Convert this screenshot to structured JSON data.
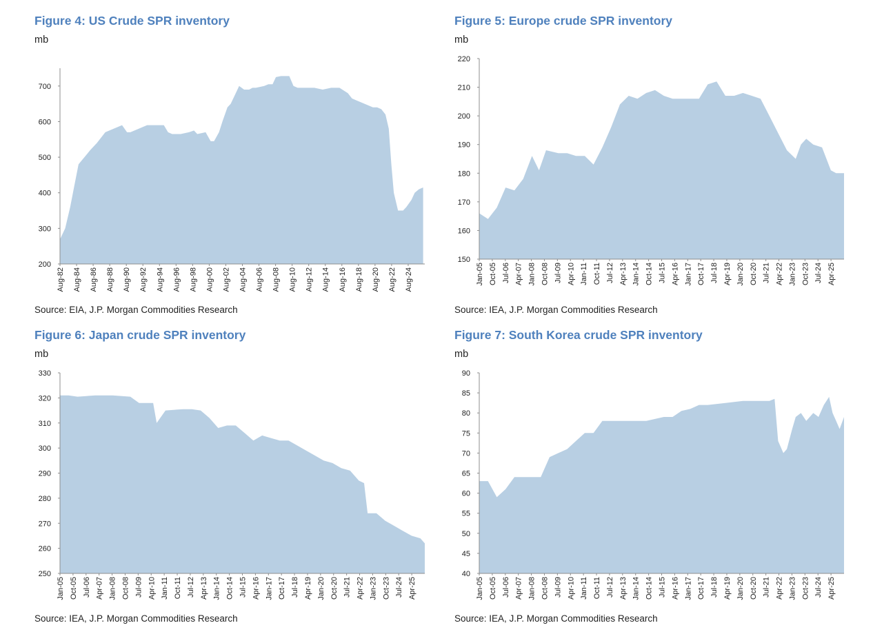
{
  "colors": {
    "title": "#4f81bd",
    "area": "#b8cfe3",
    "axis": "#8c8c8c",
    "text": "#222222"
  },
  "chart_data": [
    {
      "id": "us",
      "type": "area",
      "title": "Figure 4: US Crude SPR inventory",
      "ylabel": "mb",
      "source": "Source: EIA, J.P. Morgan Commodities Research",
      "ylim": [
        200,
        750
      ],
      "yticks": [
        200,
        300,
        400,
        500,
        600,
        700
      ],
      "xlim": [
        1982.583,
        2026.2
      ],
      "xtick_labels": [
        "Aug-82",
        "Aug-84",
        "Aug-86",
        "Aug-88",
        "Aug-90",
        "Aug-92",
        "Aug-94",
        "Aug-96",
        "Aug-98",
        "Aug-00",
        "Aug-02",
        "Aug-04",
        "Aug-06",
        "Aug-08",
        "Aug-10",
        "Aug-12",
        "Aug-14",
        "Aug-16",
        "Aug-18",
        "Aug-20",
        "Aug-22",
        "Aug-24"
      ],
      "x": [
        1982.6,
        1983.2,
        1983.8,
        1984.3,
        1984.8,
        1985.5,
        1986.2,
        1987.0,
        1988.0,
        1989.0,
        1990.0,
        1990.6,
        1991.0,
        1992.0,
        1993.0,
        1994.0,
        1995.0,
        1995.5,
        1996.0,
        1997.0,
        1998.0,
        1998.6,
        1999.0,
        2000.0,
        2000.6,
        2001.0,
        2001.6,
        2002.0,
        2002.6,
        2003.0,
        2004.0,
        2004.6,
        2005.2,
        2005.6,
        2006.0,
        2007.0,
        2007.5,
        2008.0,
        2008.4,
        2009.0,
        2009.6,
        2010.0,
        2010.5,
        2011.0,
        2011.5,
        2012.0,
        2013.0,
        2014.0,
        2015.0,
        2016.0,
        2017.0,
        2017.5,
        2018.0,
        2019.0,
        2020.0,
        2020.5,
        2021.0,
        2021.5,
        2021.9,
        2022.2,
        2022.5,
        2022.8,
        2023.0,
        2023.6,
        2024.0,
        2024.6,
        2025.0,
        2025.5,
        2026.0
      ],
      "y": [
        270,
        300,
        360,
        420,
        480,
        500,
        520,
        540,
        570,
        580,
        590,
        570,
        570,
        580,
        590,
        590,
        590,
        570,
        565,
        565,
        570,
        575,
        565,
        570,
        545,
        545,
        570,
        600,
        640,
        650,
        700,
        690,
        690,
        695,
        695,
        700,
        705,
        705,
        725,
        728,
        728,
        728,
        700,
        695,
        695,
        695,
        695,
        690,
        695,
        695,
        680,
        665,
        660,
        650,
        640,
        640,
        635,
        620,
        580,
        480,
        400,
        370,
        350,
        350,
        360,
        380,
        400,
        410,
        415
      ]
    },
    {
      "id": "europe",
      "type": "area",
      "title": "Figure 5: Europe crude SPR inventory",
      "ylabel": "mb",
      "source": "Source: IEA, J.P. Morgan Commodities Research",
      "ylim": [
        150,
        220
      ],
      "yticks": [
        150,
        160,
        170,
        180,
        190,
        200,
        210,
        220
      ],
      "xlim": [
        2005.0,
        2025.75
      ],
      "xtick_labels": [
        "Jan-05",
        "Oct-05",
        "Jul-06",
        "Apr-07",
        "Jan-08",
        "Oct-08",
        "Jul-09",
        "Apr-10",
        "Jan-11",
        "Oct-11",
        "Jul-12",
        "Apr-13",
        "Jan-14",
        "Oct-14",
        "Jul-15",
        "Apr-16",
        "Jan-17",
        "Oct-17",
        "Jul-18",
        "Apr-19",
        "Jan-20",
        "Oct-20",
        "Jul-21",
        "Apr-22",
        "Jan-23",
        "Oct-23",
        "Jul-24",
        "Apr-25"
      ],
      "x": [
        2005.0,
        2005.5,
        2006.0,
        2006.5,
        2007.0,
        2007.5,
        2008.0,
        2008.4,
        2008.8,
        2009.5,
        2010.0,
        2010.5,
        2011.0,
        2011.5,
        2012.0,
        2012.5,
        2013.0,
        2013.5,
        2014.0,
        2014.5,
        2015.0,
        2015.5,
        2016.0,
        2016.5,
        2017.0,
        2017.5,
        2018.0,
        2018.5,
        2019.0,
        2019.5,
        2020.0,
        2020.5,
        2021.0,
        2021.5,
        2022.0,
        2022.5,
        2023.0,
        2023.3,
        2023.6,
        2024.0,
        2024.5,
        2025.0,
        2025.3,
        2025.75
      ],
      "y": [
        166,
        164,
        168,
        175,
        174,
        178,
        186,
        181,
        188,
        187,
        187,
        186,
        186,
        183,
        189,
        196,
        204,
        207,
        206,
        208,
        209,
        207,
        206,
        206,
        206,
        206,
        211,
        212,
        207,
        207,
        208,
        207,
        206,
        200,
        194,
        188,
        185,
        190,
        192,
        190,
        189,
        181,
        180,
        180
      ]
    },
    {
      "id": "japan",
      "type": "area",
      "title": "Figure 6: Japan crude SPR inventory",
      "ylabel": "mb",
      "source": "Source: IEA, J.P. Morgan Commodities Research",
      "ylim": [
        250,
        330
      ],
      "yticks": [
        250,
        260,
        270,
        280,
        290,
        300,
        310,
        320,
        330
      ],
      "xlim": [
        2005.0,
        2025.75
      ],
      "xtick_labels": [
        "Jan-05",
        "Oct-05",
        "Jul-06",
        "Apr-07",
        "Jan-08",
        "Oct-08",
        "Jul-09",
        "Apr-10",
        "Jan-11",
        "Oct-11",
        "Jul-12",
        "Apr-13",
        "Jan-14",
        "Oct-14",
        "Jul-15",
        "Apr-16",
        "Jan-17",
        "Oct-17",
        "Jul-18",
        "Apr-19",
        "Jan-20",
        "Oct-20",
        "Jul-21",
        "Apr-22",
        "Jan-23",
        "Oct-23",
        "Jul-24",
        "Apr-25"
      ],
      "x": [
        2005.0,
        2005.5,
        2006.0,
        2007.0,
        2008.0,
        2009.0,
        2009.5,
        2010.3,
        2010.5,
        2011.0,
        2012.0,
        2012.5,
        2013.0,
        2013.5,
        2014.0,
        2014.5,
        2015.0,
        2015.5,
        2016.0,
        2016.5,
        2017.0,
        2017.5,
        2018.0,
        2018.5,
        2019.0,
        2019.5,
        2020.0,
        2020.5,
        2021.0,
        2021.5,
        2022.0,
        2022.3,
        2022.5,
        2023.0,
        2023.5,
        2024.0,
        2024.5,
        2025.0,
        2025.5,
        2025.75
      ],
      "y": [
        321,
        321,
        320.5,
        321,
        321,
        320.5,
        318,
        318,
        310,
        315,
        315.5,
        315.5,
        315,
        312,
        308,
        309,
        309,
        306,
        303,
        305,
        304,
        303,
        303,
        301,
        299,
        297,
        295,
        294,
        292,
        291,
        287,
        286,
        274,
        274,
        271,
        269,
        267,
        265,
        264,
        262
      ]
    },
    {
      "id": "korea",
      "type": "area",
      "title": "Figure 7: South Korea crude SPR inventory",
      "ylabel": "mb",
      "source": "Source: IEA, J.P. Morgan Commodities Research",
      "ylim": [
        40,
        90
      ],
      "yticks": [
        40,
        45,
        50,
        55,
        60,
        65,
        70,
        75,
        80,
        85,
        90
      ],
      "xlim": [
        2005.0,
        2025.75
      ],
      "xtick_labels": [
        "Jan-05",
        "Oct-05",
        "Jul-06",
        "Apr-07",
        "Jan-08",
        "Oct-08",
        "Jul-09",
        "Apr-10",
        "Jan-11",
        "Oct-11",
        "Jul-12",
        "Apr-13",
        "Jan-14",
        "Oct-14",
        "Jul-15",
        "Apr-16",
        "Jan-17",
        "Oct-17",
        "Jul-18",
        "Apr-19",
        "Jan-20",
        "Oct-20",
        "Jul-21",
        "Apr-22",
        "Jan-23",
        "Oct-23",
        "Jul-24",
        "Apr-25"
      ],
      "x": [
        2005.0,
        2005.5,
        2006.0,
        2006.5,
        2007.0,
        2007.5,
        2008.0,
        2008.5,
        2009.0,
        2009.5,
        2010.0,
        2010.5,
        2011.0,
        2011.5,
        2012.0,
        2013.0,
        2014.0,
        2014.5,
        2015.0,
        2015.5,
        2016.0,
        2016.5,
        2017.0,
        2017.5,
        2018.0,
        2019.0,
        2020.0,
        2020.5,
        2021.0,
        2021.5,
        2021.8,
        2022.0,
        2022.3,
        2022.5,
        2022.8,
        2023.0,
        2023.3,
        2023.6,
        2024.0,
        2024.3,
        2024.6,
        2024.9,
        2025.1,
        2025.3,
        2025.5,
        2025.75
      ],
      "y": [
        63,
        63,
        59,
        61,
        64,
        64,
        64,
        64,
        69,
        70,
        71,
        73,
        75,
        75,
        78,
        78,
        78,
        78,
        78.5,
        79,
        79,
        80.5,
        81,
        82,
        82,
        82.5,
        83,
        83,
        83,
        83,
        83.5,
        73,
        70,
        71,
        76,
        79,
        80,
        78,
        80,
        79,
        82,
        84,
        80,
        78,
        76,
        79
      ]
    }
  ]
}
